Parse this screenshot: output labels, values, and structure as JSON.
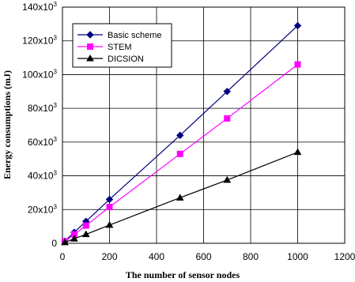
{
  "chart_data": {
    "type": "line",
    "xlabel": "The number of sensor nodes",
    "ylabel": "Energy consumptions (mJ)",
    "xlim": [
      0,
      1200
    ],
    "ylim": [
      0,
      140000
    ],
    "x_ticks": [
      "0",
      "200",
      "400",
      "600",
      "800",
      "1000",
      "1200"
    ],
    "x_tick_values": [
      0,
      200,
      400,
      600,
      800,
      1000,
      1200
    ],
    "y_ticks": [
      {
        "value": 0,
        "base": "0",
        "exp": ""
      },
      {
        "value": 20000,
        "base": "20x10",
        "exp": "3"
      },
      {
        "value": 40000,
        "base": "40x10",
        "exp": "3"
      },
      {
        "value": 60000,
        "base": "60x10",
        "exp": "3"
      },
      {
        "value": 80000,
        "base": "80x10",
        "exp": "3"
      },
      {
        "value": 100000,
        "base": "100x10",
        "exp": "3"
      },
      {
        "value": 120000,
        "base": "120x10",
        "exp": "3"
      },
      {
        "value": 140000,
        "base": "140x10",
        "exp": "3"
      }
    ],
    "grid": true,
    "legend_position": "top-left",
    "series": [
      {
        "name": "Basic scheme",
        "color": "#000080",
        "marker": "diamond",
        "x": [
          10,
          50,
          100,
          200,
          500,
          700,
          1000
        ],
        "y": [
          1300,
          6500,
          13000,
          26000,
          64000,
          90000,
          129000
        ]
      },
      {
        "name": "STEM",
        "color": "#ff00ff",
        "marker": "square",
        "x": [
          10,
          50,
          100,
          200,
          500,
          700,
          1000
        ],
        "y": [
          1100,
          5300,
          10500,
          21500,
          53000,
          74000,
          106000
        ]
      },
      {
        "name": "DICSION",
        "color": "#000000",
        "marker": "triangle",
        "x": [
          10,
          50,
          100,
          200,
          500,
          700,
          1000
        ],
        "y": [
          500,
          2700,
          5300,
          10800,
          27000,
          37500,
          54000
        ]
      }
    ]
  }
}
